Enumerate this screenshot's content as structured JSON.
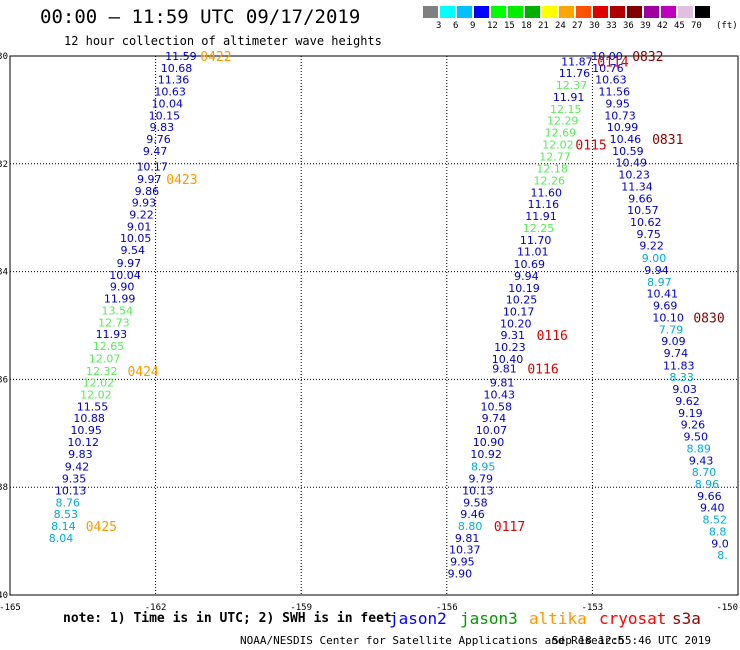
{
  "header": {
    "title": "00:00 – 11:59 UTC 09/17/2019",
    "subtitle": "12 hour collection of altimeter wave heights"
  },
  "color_scale": {
    "colors": [
      "#808080",
      "#00ffff",
      "#00c0ff",
      "#0000ff",
      "#00ff00",
      "#00ee00",
      "#00b000",
      "#ffff00",
      "#ffa500",
      "#ff5000",
      "#e00000",
      "#b00000",
      "#800000",
      "#a000a0",
      "#c000c0",
      "#e0c0e0",
      "#000000"
    ],
    "labels": [
      "3",
      "6",
      "9",
      "12",
      "15",
      "18",
      "21",
      "24",
      "27",
      "30",
      "33",
      "36",
      "39",
      "42",
      "45",
      "70"
    ],
    "unit": "(ft)"
  },
  "axes": {
    "lat_labels": [
      "-30",
      "-32",
      "-34",
      "-36",
      "-38",
      "-40"
    ],
    "lon_labels": [
      "-165",
      "-162",
      "-159",
      "-156",
      "-153",
      "-150"
    ]
  },
  "colors": {
    "dark_blue": "#0000cc",
    "light_green": "#55ee55",
    "cyan": "#00aadd",
    "orange": "#ff9900",
    "red": "#dd0000",
    "maroon": "#880000"
  },
  "tracks": [
    {
      "name": "track-a",
      "points": [
        {
          "lon": -161.48,
          "lat": -30.0,
          "v": "11.59",
          "c": "dark_blue"
        },
        {
          "lon": -161.57,
          "lat": -30.22,
          "v": "10.68",
          "c": "dark_blue"
        },
        {
          "lon": -161.63,
          "lat": -30.44,
          "v": "11.36",
          "c": "dark_blue"
        },
        {
          "lon": -161.7,
          "lat": -30.66,
          "v": "10.63",
          "c": "dark_blue"
        },
        {
          "lon": -161.76,
          "lat": -30.88,
          "v": "10.04",
          "c": "dark_blue"
        },
        {
          "lon": -161.82,
          "lat": -31.1,
          "v": "10.15",
          "c": "dark_blue"
        },
        {
          "lon": -161.87,
          "lat": -31.32,
          "v": "9.83",
          "c": "dark_blue"
        },
        {
          "lon": -161.94,
          "lat": -31.54,
          "v": "9.76",
          "c": "dark_blue"
        },
        {
          "lon": -162.01,
          "lat": -31.76,
          "v": "9.47",
          "c": "dark_blue"
        },
        {
          "lon": -162.07,
          "lat": -32.05,
          "v": "10.17",
          "c": "dark_blue"
        },
        {
          "lon": -162.13,
          "lat": -32.28,
          "v": "9.97",
          "c": "dark_blue"
        },
        {
          "lon": -162.18,
          "lat": -32.5,
          "v": "9.86",
          "c": "dark_blue"
        },
        {
          "lon": -162.24,
          "lat": -32.72,
          "v": "9.93",
          "c": "dark_blue"
        },
        {
          "lon": -162.29,
          "lat": -32.94,
          "v": "9.22",
          "c": "dark_blue"
        },
        {
          "lon": -162.34,
          "lat": -33.16,
          "v": "9.01",
          "c": "dark_blue"
        },
        {
          "lon": -162.41,
          "lat": -33.38,
          "v": "10.05",
          "c": "dark_blue"
        },
        {
          "lon": -162.47,
          "lat": -33.6,
          "v": "9.54",
          "c": "dark_blue"
        },
        {
          "lon": -162.55,
          "lat": -33.84,
          "v": "9.97",
          "c": "dark_blue"
        },
        {
          "lon": -162.63,
          "lat": -34.06,
          "v": "10.04",
          "c": "dark_blue"
        },
        {
          "lon": -162.69,
          "lat": -34.28,
          "v": "9.90",
          "c": "dark_blue"
        },
        {
          "lon": -162.74,
          "lat": -34.5,
          "v": "11.99",
          "c": "dark_blue"
        },
        {
          "lon": -162.79,
          "lat": -34.72,
          "v": "13.54",
          "c": "light_green"
        },
        {
          "lon": -162.86,
          "lat": -34.94,
          "v": "12.73",
          "c": "light_green"
        },
        {
          "lon": -162.91,
          "lat": -35.16,
          "v": "11.93",
          "c": "dark_blue"
        },
        {
          "lon": -162.97,
          "lat": -35.38,
          "v": "12.65",
          "c": "light_green"
        },
        {
          "lon": -163.05,
          "lat": -35.61,
          "v": "12.07",
          "c": "light_green"
        },
        {
          "lon": -163.11,
          "lat": -35.84,
          "v": "12.32",
          "c": "light_green"
        },
        {
          "lon": -163.18,
          "lat": -36.06,
          "v": "12.02",
          "c": "light_green"
        },
        {
          "lon": -163.23,
          "lat": -36.28,
          "v": "12.02",
          "c": "light_green"
        },
        {
          "lon": -163.3,
          "lat": -36.5,
          "v": "11.55",
          "c": "dark_blue"
        },
        {
          "lon": -163.37,
          "lat": -36.72,
          "v": "10.88",
          "c": "dark_blue"
        },
        {
          "lon": -163.43,
          "lat": -36.94,
          "v": "10.95",
          "c": "dark_blue"
        },
        {
          "lon": -163.49,
          "lat": -37.16,
          "v": "10.12",
          "c": "dark_blue"
        },
        {
          "lon": -163.55,
          "lat": -37.38,
          "v": "9.83",
          "c": "dark_blue"
        },
        {
          "lon": -163.62,
          "lat": -37.62,
          "v": "9.42",
          "c": "dark_blue"
        },
        {
          "lon": -163.68,
          "lat": -37.84,
          "v": "9.35",
          "c": "dark_blue"
        },
        {
          "lon": -163.75,
          "lat": -38.06,
          "v": "10.13",
          "c": "dark_blue"
        },
        {
          "lon": -163.81,
          "lat": -38.28,
          "v": "8.76",
          "c": "cyan"
        },
        {
          "lon": -163.85,
          "lat": -38.5,
          "v": "8.53",
          "c": "cyan"
        },
        {
          "lon": -163.9,
          "lat": -38.72,
          "v": "8.14",
          "c": "cyan"
        },
        {
          "lon": -163.95,
          "lat": -38.94,
          "v": "8.04",
          "c": "cyan"
        }
      ]
    },
    {
      "name": "track-b",
      "points": [
        {
          "lon": -153.32,
          "lat": -30.1,
          "v": "11.87",
          "c": "dark_blue"
        },
        {
          "lon": -153.37,
          "lat": -30.32,
          "v": "11.76",
          "c": "dark_blue"
        },
        {
          "lon": -153.43,
          "lat": -30.54,
          "v": "12.37",
          "c": "light_green"
        },
        {
          "lon": -153.49,
          "lat": -30.76,
          "v": "11.91",
          "c": "dark_blue"
        },
        {
          "lon": -153.55,
          "lat": -30.98,
          "v": "12.15",
          "c": "light_green"
        },
        {
          "lon": -153.61,
          "lat": -31.2,
          "v": "12.29",
          "c": "light_green"
        },
        {
          "lon": -153.66,
          "lat": -31.42,
          "v": "12.69",
          "c": "light_green"
        },
        {
          "lon": -153.71,
          "lat": -31.64,
          "v": "12.02",
          "c": "light_green"
        },
        {
          "lon": -153.77,
          "lat": -31.86,
          "v": "12.77",
          "c": "light_green"
        },
        {
          "lon": -153.83,
          "lat": -32.09,
          "v": "12.18",
          "c": "light_green"
        },
        {
          "lon": -153.89,
          "lat": -32.31,
          "v": "12.26",
          "c": "light_green"
        },
        {
          "lon": -153.95,
          "lat": -32.53,
          "v": "11.60",
          "c": "dark_blue"
        },
        {
          "lon": -154.01,
          "lat": -32.75,
          "v": "11.16",
          "c": "dark_blue"
        },
        {
          "lon": -154.06,
          "lat": -32.97,
          "v": "11.91",
          "c": "dark_blue"
        },
        {
          "lon": -154.11,
          "lat": -33.19,
          "v": "12.25",
          "c": "light_green"
        },
        {
          "lon": -154.17,
          "lat": -33.41,
          "v": "11.70",
          "c": "dark_blue"
        },
        {
          "lon": -154.23,
          "lat": -33.63,
          "v": "11.01",
          "c": "dark_blue"
        },
        {
          "lon": -154.3,
          "lat": -33.86,
          "v": "10.69",
          "c": "dark_blue"
        },
        {
          "lon": -154.36,
          "lat": -34.08,
          "v": "9.94",
          "c": "dark_blue"
        },
        {
          "lon": -154.41,
          "lat": -34.3,
          "v": "10.19",
          "c": "dark_blue"
        },
        {
          "lon": -154.46,
          "lat": -34.52,
          "v": "10.25",
          "c": "dark_blue"
        },
        {
          "lon": -154.52,
          "lat": -34.74,
          "v": "10.17",
          "c": "dark_blue"
        },
        {
          "lon": -154.58,
          "lat": -34.96,
          "v": "10.20",
          "c": "dark_blue"
        },
        {
          "lon": -154.64,
          "lat": -35.18,
          "v": "9.31",
          "c": "dark_blue"
        },
        {
          "lon": -154.7,
          "lat": -35.4,
          "v": "10.23",
          "c": "dark_blue"
        },
        {
          "lon": -154.75,
          "lat": -35.62,
          "v": "10.40",
          "c": "dark_blue"
        },
        {
          "lon": -154.81,
          "lat": -35.8,
          "v": "9.81",
          "c": "dark_blue"
        },
        {
          "lon": -154.86,
          "lat": -36.06,
          "v": "9.81",
          "c": "dark_blue"
        },
        {
          "lon": -154.92,
          "lat": -36.28,
          "v": "10.43",
          "c": "dark_blue"
        },
        {
          "lon": -154.98,
          "lat": -36.5,
          "v": "10.58",
          "c": "dark_blue"
        },
        {
          "lon": -155.03,
          "lat": -36.72,
          "v": "9.74",
          "c": "dark_blue"
        },
        {
          "lon": -155.08,
          "lat": -36.94,
          "v": "10.07",
          "c": "dark_blue"
        },
        {
          "lon": -155.14,
          "lat": -37.16,
          "v": "10.90",
          "c": "dark_blue"
        },
        {
          "lon": -155.19,
          "lat": -37.38,
          "v": "10.92",
          "c": "dark_blue"
        },
        {
          "lon": -155.25,
          "lat": -37.62,
          "v": "8.95",
          "c": "cyan"
        },
        {
          "lon": -155.3,
          "lat": -37.84,
          "v": "9.79",
          "c": "dark_blue"
        },
        {
          "lon": -155.36,
          "lat": -38.06,
          "v": "10.13",
          "c": "dark_blue"
        },
        {
          "lon": -155.41,
          "lat": -38.28,
          "v": "9.58",
          "c": "dark_blue"
        },
        {
          "lon": -155.47,
          "lat": -38.5,
          "v": "9.46",
          "c": "dark_blue"
        },
        {
          "lon": -155.52,
          "lat": -38.72,
          "v": "8.80",
          "c": "cyan"
        },
        {
          "lon": -155.58,
          "lat": -38.94,
          "v": "9.81",
          "c": "dark_blue"
        },
        {
          "lon": -155.63,
          "lat": -39.16,
          "v": "10.37",
          "c": "dark_blue"
        },
        {
          "lon": -155.68,
          "lat": -39.38,
          "v": "9.95",
          "c": "dark_blue"
        },
        {
          "lon": -155.73,
          "lat": -39.6,
          "v": "9.90",
          "c": "dark_blue"
        }
      ]
    },
    {
      "name": "track-c",
      "points": [
        {
          "lon": -152.7,
          "lat": -30.0,
          "v": "10.00",
          "c": "dark_blue"
        },
        {
          "lon": -152.68,
          "lat": -30.22,
          "v": "10.76",
          "c": "dark_blue"
        },
        {
          "lon": -152.62,
          "lat": -30.44,
          "v": "10.63",
          "c": "dark_blue"
        },
        {
          "lon": -152.55,
          "lat": -30.66,
          "v": "11.56",
          "c": "dark_blue"
        },
        {
          "lon": -152.48,
          "lat": -30.88,
          "v": "9.95",
          "c": "dark_blue"
        },
        {
          "lon": -152.43,
          "lat": -31.1,
          "v": "10.73",
          "c": "dark_blue"
        },
        {
          "lon": -152.38,
          "lat": -31.32,
          "v": "10.99",
          "c": "dark_blue"
        },
        {
          "lon": -152.32,
          "lat": -31.54,
          "v": "10.46",
          "c": "dark_blue"
        },
        {
          "lon": -152.27,
          "lat": -31.76,
          "v": "10.59",
          "c": "dark_blue"
        },
        {
          "lon": -152.2,
          "lat": -31.98,
          "v": "10.49",
          "c": "dark_blue"
        },
        {
          "lon": -152.14,
          "lat": -32.2,
          "v": "10.23",
          "c": "dark_blue"
        },
        {
          "lon": -152.08,
          "lat": -32.42,
          "v": "11.34",
          "c": "dark_blue"
        },
        {
          "lon": -152.01,
          "lat": -32.64,
          "v": "9.66",
          "c": "dark_blue"
        },
        {
          "lon": -151.96,
          "lat": -32.86,
          "v": "10.57",
          "c": "dark_blue"
        },
        {
          "lon": -151.9,
          "lat": -33.08,
          "v": "10.62",
          "c": "dark_blue"
        },
        {
          "lon": -151.84,
          "lat": -33.3,
          "v": "9.75",
          "c": "dark_blue"
        },
        {
          "lon": -151.78,
          "lat": -33.52,
          "v": "9.22",
          "c": "dark_blue"
        },
        {
          "lon": -151.73,
          "lat": -33.75,
          "v": "9.00",
          "c": "cyan"
        },
        {
          "lon": -151.68,
          "lat": -33.97,
          "v": "9.94",
          "c": "dark_blue"
        },
        {
          "lon": -151.62,
          "lat": -34.19,
          "v": "8.97",
          "c": "cyan"
        },
        {
          "lon": -151.56,
          "lat": -34.41,
          "v": "10.41",
          "c": "dark_blue"
        },
        {
          "lon": -151.5,
          "lat": -34.63,
          "v": "9.69",
          "c": "dark_blue"
        },
        {
          "lon": -151.44,
          "lat": -34.85,
          "v": "10.10",
          "c": "dark_blue"
        },
        {
          "lon": -151.38,
          "lat": -35.07,
          "v": "7.79",
          "c": "cyan"
        },
        {
          "lon": -151.33,
          "lat": -35.29,
          "v": "9.09",
          "c": "dark_blue"
        },
        {
          "lon": -151.28,
          "lat": -35.51,
          "v": "9.74",
          "c": "dark_blue"
        },
        {
          "lon": -151.22,
          "lat": -35.74,
          "v": "11.83",
          "c": "dark_blue"
        },
        {
          "lon": -151.16,
          "lat": -35.96,
          "v": "8.33",
          "c": "cyan"
        },
        {
          "lon": -151.1,
          "lat": -36.18,
          "v": "9.03",
          "c": "dark_blue"
        },
        {
          "lon": -151.04,
          "lat": -36.4,
          "v": "9.62",
          "c": "dark_blue"
        },
        {
          "lon": -150.98,
          "lat": -36.62,
          "v": "9.19",
          "c": "dark_blue"
        },
        {
          "lon": -150.93,
          "lat": -36.84,
          "v": "9.26",
          "c": "dark_blue"
        },
        {
          "lon": -150.87,
          "lat": -37.06,
          "v": "9.50",
          "c": "dark_blue"
        },
        {
          "lon": -150.81,
          "lat": -37.28,
          "v": "8.89",
          "c": "cyan"
        },
        {
          "lon": -150.76,
          "lat": -37.5,
          "v": "9.43",
          "c": "dark_blue"
        },
        {
          "lon": -150.7,
          "lat": -37.72,
          "v": "8.70",
          "c": "cyan"
        },
        {
          "lon": -150.64,
          "lat": -37.94,
          "v": "8.96",
          "c": "cyan"
        },
        {
          "lon": -150.59,
          "lat": -38.16,
          "v": "9.66",
          "c": "dark_blue"
        },
        {
          "lon": -150.53,
          "lat": -38.38,
          "v": "9.40",
          "c": "dark_blue"
        },
        {
          "lon": -150.48,
          "lat": -38.6,
          "v": "8.52",
          "c": "cyan"
        },
        {
          "lon": -150.42,
          "lat": -38.82,
          "v": "8.8",
          "c": "cyan"
        },
        {
          "lon": -150.37,
          "lat": -39.04,
          "v": "9.0",
          "c": "dark_blue"
        },
        {
          "lon": -150.32,
          "lat": -39.26,
          "v": "8.",
          "c": "cyan"
        }
      ]
    }
  ],
  "time_labels": [
    {
      "text": "0422",
      "lon": -161.08,
      "lat": -30.0,
      "c": "orange"
    },
    {
      "text": "0423",
      "lon": -161.78,
      "lat": -32.28,
      "c": "orange"
    },
    {
      "text": "0424",
      "lon": -162.58,
      "lat": -35.84,
      "c": "orange"
    },
    {
      "text": "0425",
      "lon": -163.44,
      "lat": -38.72,
      "c": "orange"
    },
    {
      "text": "0114",
      "lon": -152.9,
      "lat": -30.1,
      "c": "red"
    },
    {
      "text": "0115",
      "lon": -153.35,
      "lat": -31.64,
      "c": "red"
    },
    {
      "text": "0116",
      "lon": -154.15,
      "lat": -35.18,
      "c": "red"
    },
    {
      "text": "0116",
      "lon": -154.34,
      "lat": -35.8,
      "c": "red"
    },
    {
      "text": "0117",
      "lon": -155.03,
      "lat": -38.72,
      "c": "red"
    },
    {
      "text": "0832",
      "lon": -152.18,
      "lat": -30.0,
      "c": "maroon"
    },
    {
      "text": "0831",
      "lon": -151.77,
      "lat": -31.54,
      "c": "maroon"
    },
    {
      "text": "0830",
      "lon": -150.92,
      "lat": -34.85,
      "c": "maroon"
    }
  ],
  "footer": {
    "note": "note: 1) Time is in UTC; 2) SWH is in feet",
    "satellites": [
      {
        "name": "jason2",
        "color": "#0000ff"
      },
      {
        "name": "jason3",
        "color": "#009900"
      },
      {
        "name": "altika",
        "color": "#ff9900"
      },
      {
        "name": "cryosat",
        "color": "#ff0000"
      },
      {
        "name": "s3a",
        "color": "#990000"
      }
    ],
    "credit": "NOAA/NESDIS Center for Satellite Applications and Research",
    "timestamp": "Sep 18 12:55:46 UTC 2019"
  }
}
